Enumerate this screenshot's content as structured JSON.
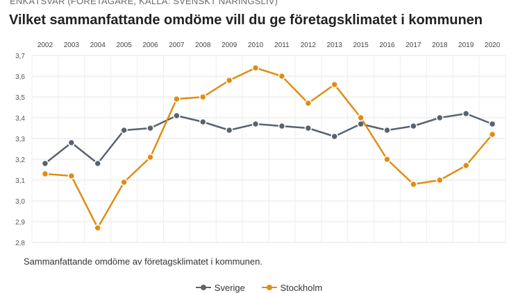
{
  "header": {
    "supertitle": "ENKÄTSVAR (FÖRETAGARE, KÄLLA: SVENSKT NÄRINGSLIV)",
    "title": "Vilket sammanfattande omdöme vill du ge företagsklimatet i kommunen"
  },
  "caption": "Sammanfattande omdöme av företagsklimatet i kommunen.",
  "chart_data": {
    "type": "line",
    "title": "Vilket sammanfattande omdöme vill du ge företagsklimatet i kommunen",
    "categories": [
      "2002",
      "2003",
      "2004",
      "2005",
      "2006",
      "2007",
      "2008",
      "2009",
      "2010",
      "2011",
      "2012",
      "2013",
      "2015",
      "2016",
      "2017",
      "2018",
      "2019",
      "2020"
    ],
    "series": [
      {
        "name": "Sverige",
        "color": "#596270",
        "values": [
          3.18,
          3.28,
          3.18,
          3.34,
          3.35,
          3.41,
          3.38,
          3.34,
          3.37,
          3.36,
          3.35,
          3.31,
          3.37,
          3.34,
          3.36,
          3.4,
          3.42,
          3.37
        ]
      },
      {
        "name": "Stockholm",
        "color": "#e08d12",
        "values": [
          3.13,
          3.12,
          2.87,
          3.09,
          3.21,
          3.49,
          3.5,
          3.58,
          3.64,
          3.6,
          3.47,
          3.56,
          3.4,
          3.2,
          3.08,
          3.1,
          3.17,
          3.32
        ]
      }
    ],
    "ylim": [
      2.8,
      3.7
    ],
    "yticks": [
      "2,8",
      "2,9",
      "3,0",
      "3,1",
      "3,2",
      "3,3",
      "3,4",
      "3,5",
      "3,6",
      "3,7"
    ],
    "grid": true,
    "legend": "bottom-center"
  }
}
